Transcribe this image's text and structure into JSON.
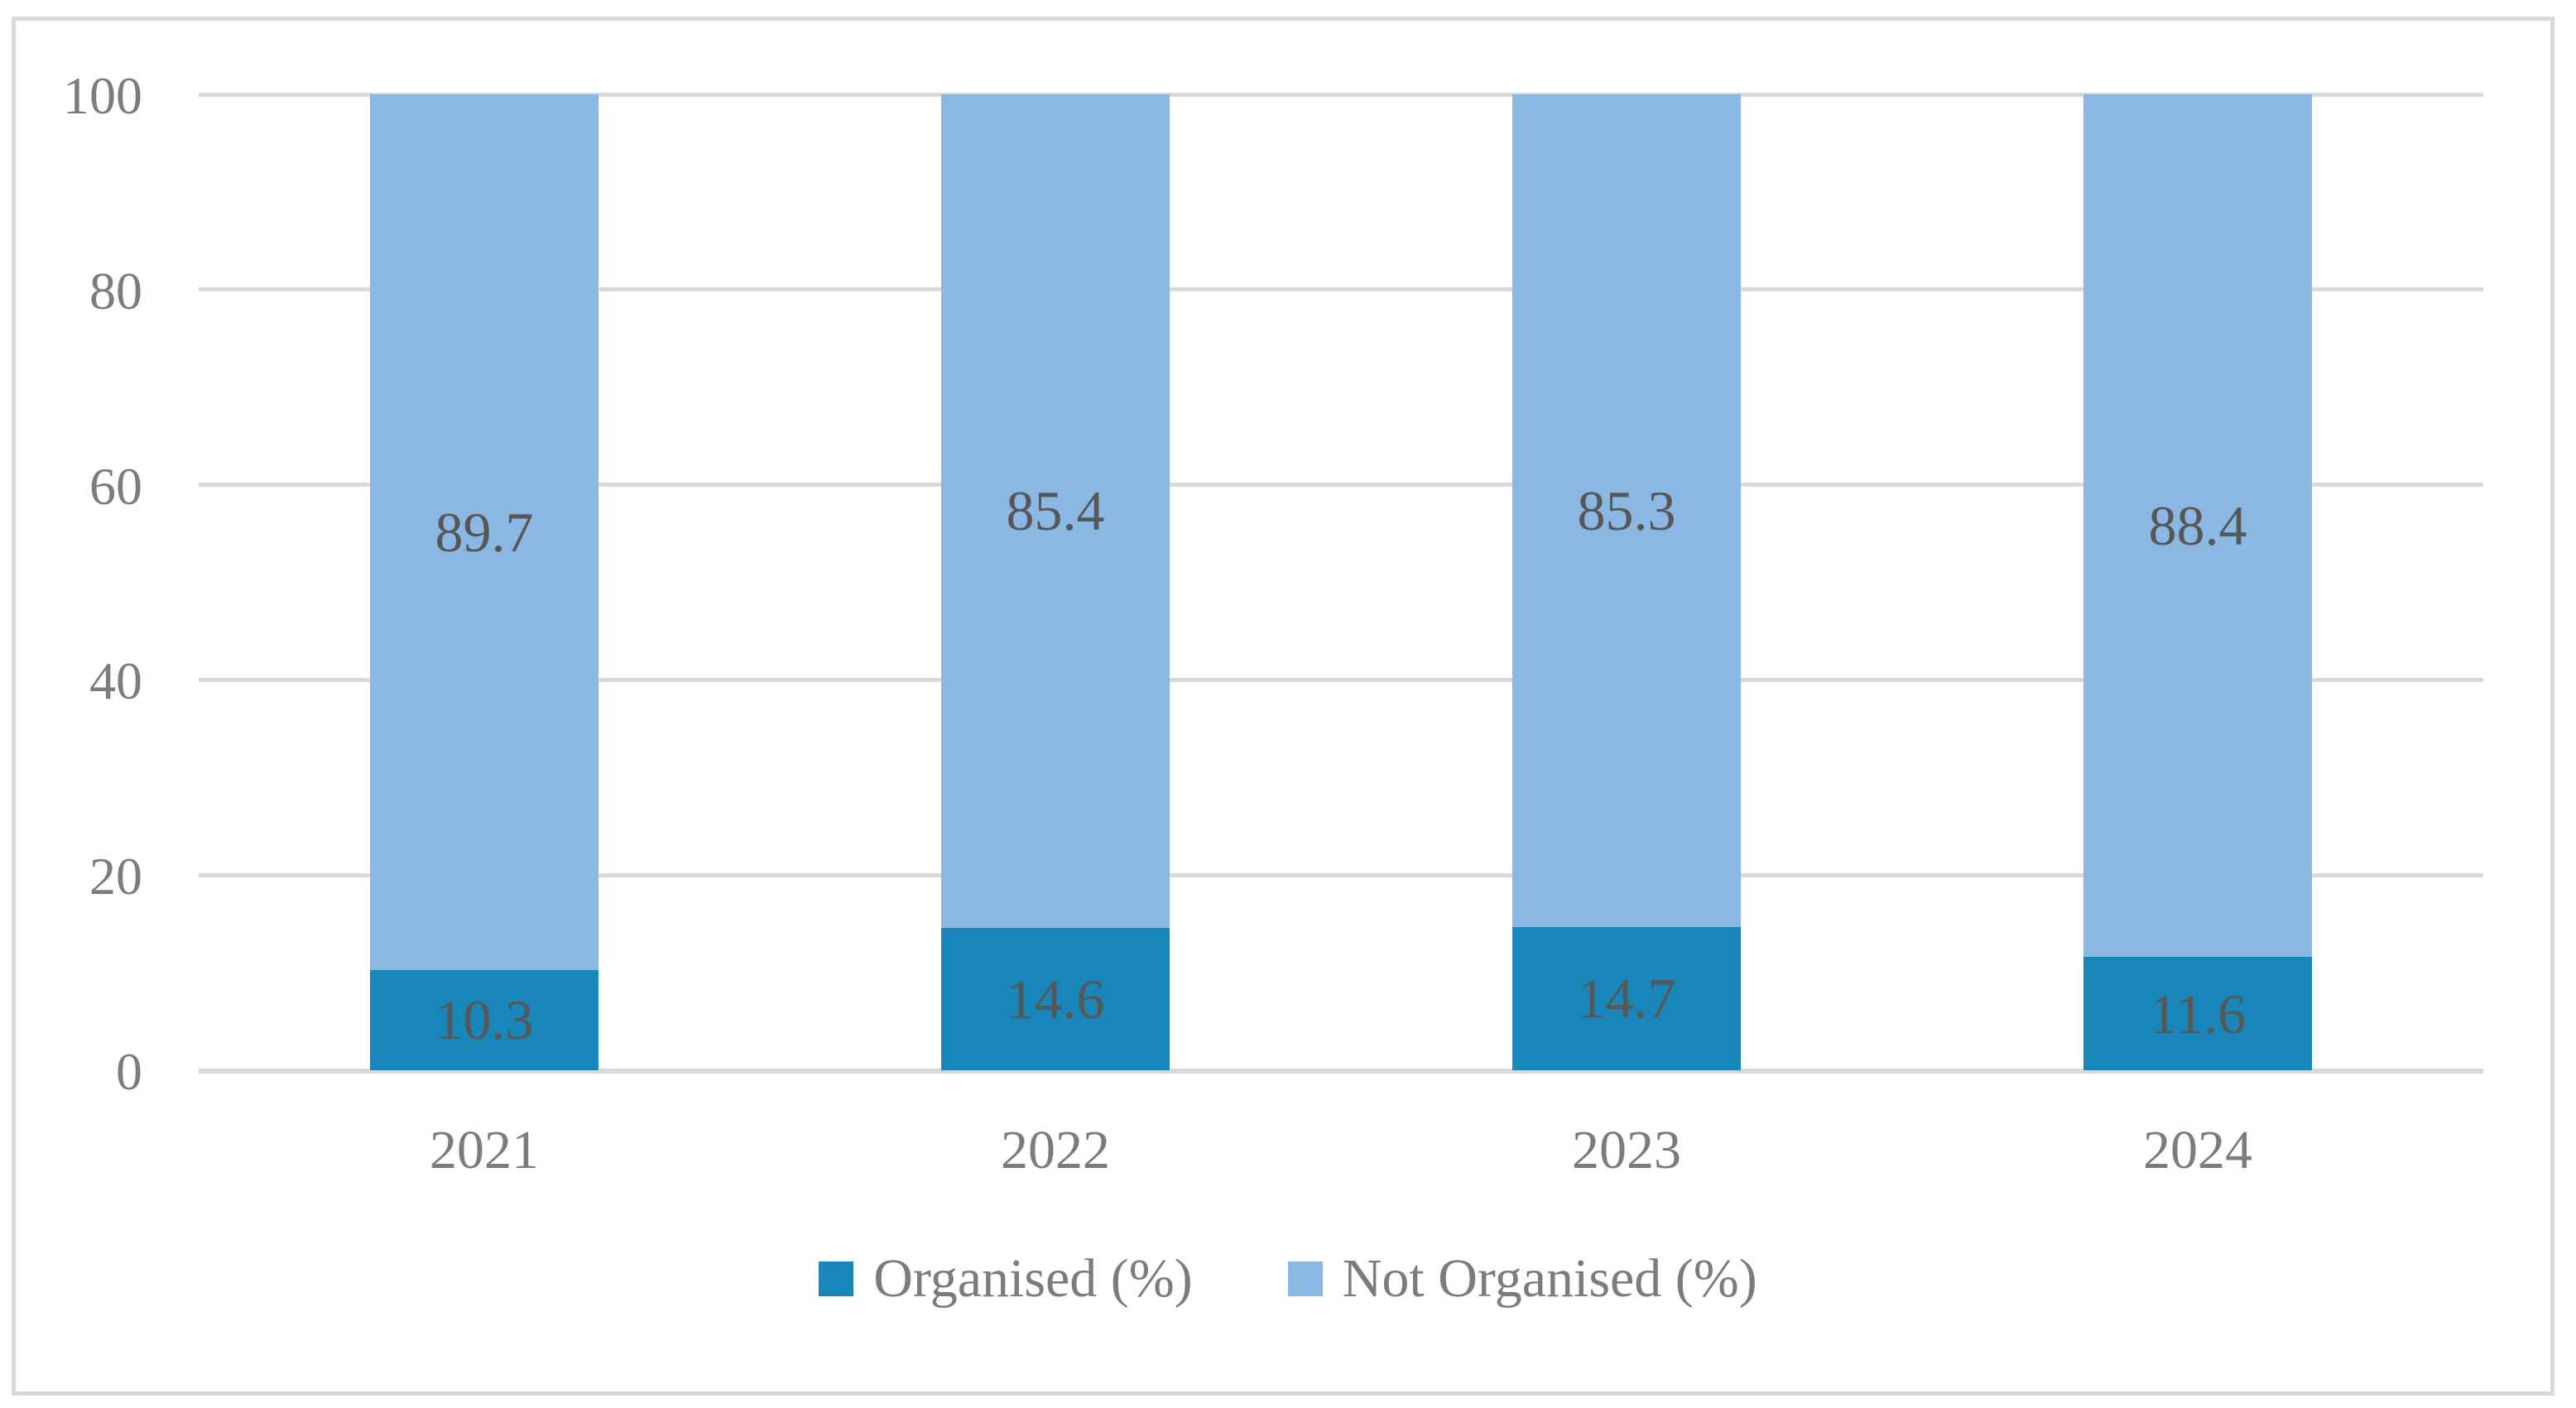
{
  "chart_data": {
    "type": "bar",
    "stacked": true,
    "title": "",
    "xlabel": "",
    "ylabel": "",
    "categories": [
      "2021",
      "2022",
      "2023",
      "2024"
    ],
    "series": [
      {
        "name": "Organised (%)",
        "color": "#1886B8",
        "values": [
          10.3,
          14.6,
          14.7,
          11.6
        ]
      },
      {
        "name": "Not Organised (%)",
        "color": "#8BB8E2",
        "values": [
          89.7,
          85.4,
          85.3,
          88.4
        ]
      }
    ],
    "ylim": [
      0,
      100
    ],
    "yticks": [
      0,
      20,
      40,
      60,
      80,
      100
    ],
    "grid": "horizontal",
    "legend_position": "bottom",
    "colors": {
      "gridline": "#D9D9D9",
      "frame_border": "#D9D9D9",
      "axis_text": "#7C7C7C",
      "data_label_text": "#575757",
      "background": "#FFFFFF"
    }
  }
}
